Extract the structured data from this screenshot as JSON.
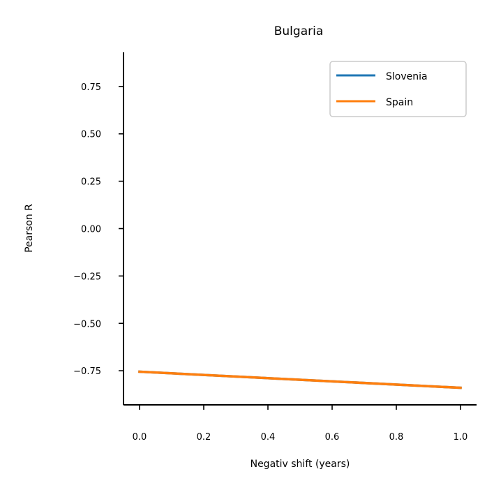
{
  "chart_data": {
    "type": "line",
    "title": "Bulgaria",
    "xlabel": "Negativ shift (years)",
    "ylabel": "Pearson R",
    "xlim": [
      -0.05,
      1.05
    ],
    "ylim": [
      -0.93,
      0.93
    ],
    "xticks": [
      0.0,
      0.2,
      0.4,
      0.6,
      0.8,
      1.0
    ],
    "xtick_labels": [
      "0.0",
      "0.2",
      "0.4",
      "0.6",
      "0.8",
      "1.0"
    ],
    "yticks": [
      0.75,
      0.5,
      0.25,
      0.0,
      -0.25,
      -0.5,
      -0.75
    ],
    "ytick_labels": [
      "0.75",
      "0.50",
      "0.25",
      "0.00",
      "−0.25",
      "−0.50",
      "−0.75"
    ],
    "grid": false,
    "legend_position": "upper right",
    "series": [
      {
        "name": "Slovenia",
        "color": "#1f77b4",
        "x": [
          0.0,
          1.0
        ],
        "y": [
          -0.755,
          -0.84
        ]
      },
      {
        "name": "Spain",
        "color": "#ff7f0e",
        "x": [
          0.0,
          1.0
        ],
        "y": [
          -0.755,
          -0.84
        ]
      }
    ]
  }
}
